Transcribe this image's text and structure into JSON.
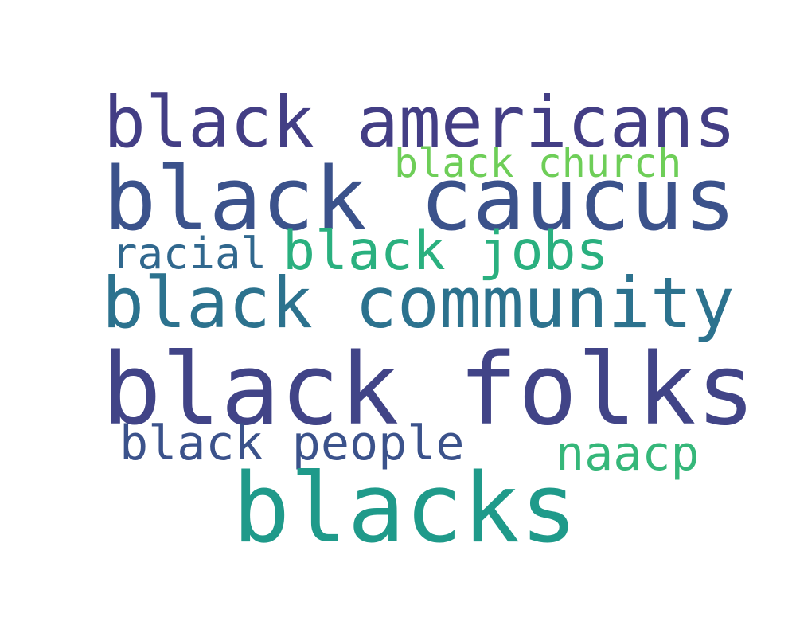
{
  "words": [
    {
      "text": "black americans",
      "color": "#433e85"
    },
    {
      "text": "black church",
      "color": "#6ece58"
    },
    {
      "text": "black caucus",
      "color": "#3b528b"
    },
    {
      "text": "racial",
      "color": "#31688e"
    },
    {
      "text": "black jobs",
      "color": "#2ab07f"
    },
    {
      "text": "black community",
      "color": "#2c728e"
    },
    {
      "text": "black folks",
      "color": "#414487"
    },
    {
      "text": "black people",
      "color": "#3b528b"
    },
    {
      "text": "naacp",
      "color": "#35b779"
    },
    {
      "text": "blacks",
      "color": "#1f9a8a"
    }
  ]
}
